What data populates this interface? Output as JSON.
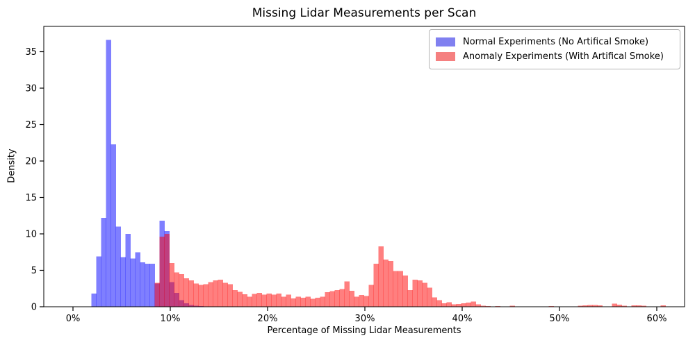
{
  "chart": {
    "title": "Missing Lidar Measurements per Scan",
    "xlabel": "Percentage of Missing Lidar Measurements",
    "ylabel": "Density"
  },
  "legend": {
    "position": "upper right",
    "items": [
      {
        "label": "Normal Experiments (No Artifical Smoke)",
        "swatch_color": "#8080f0",
        "series": "normal"
      },
      {
        "label": "Anomaly Experiments (With Artifical Smoke)",
        "swatch_color": "#f58080",
        "series": "anomaly"
      }
    ]
  },
  "chart_data": {
    "type": "bar",
    "subtype": "overlapping-density-histograms",
    "title": "Missing Lidar Measurements per Scan",
    "xlabel": "Percentage of Missing Lidar Measurements",
    "ylabel": "Density",
    "x_tick_values": [
      0,
      10,
      20,
      30,
      40,
      50,
      60
    ],
    "x_tick_labels": [
      "0%",
      "10%",
      "20%",
      "30%",
      "40%",
      "50%",
      "60%"
    ],
    "y_tick_values": [
      0,
      5,
      10,
      15,
      20,
      25,
      30,
      35
    ],
    "xlim": [
      -3.0,
      62.9
    ],
    "ylim": [
      0,
      38.6
    ],
    "grid": false,
    "bin_width_percent": 0.5,
    "series": [
      {
        "name": "Normal Experiments (No Artifical Smoke)",
        "color": "#0000ff",
        "alpha": 0.5,
        "rendered_color_on_white": "#8080ff",
        "bars": [
          [
            1.9,
            1.8
          ],
          [
            2.4,
            6.9
          ],
          [
            2.9,
            12.2
          ],
          [
            3.4,
            36.6
          ],
          [
            3.9,
            22.3
          ],
          [
            4.4,
            11.0
          ],
          [
            4.9,
            6.8
          ],
          [
            5.4,
            10.0
          ],
          [
            5.9,
            6.6
          ],
          [
            6.4,
            7.5
          ],
          [
            6.9,
            6.1
          ],
          [
            7.4,
            5.9
          ],
          [
            7.9,
            5.9
          ],
          [
            8.4,
            3.2
          ],
          [
            8.9,
            11.8
          ],
          [
            9.4,
            10.4
          ],
          [
            9.9,
            3.4
          ],
          [
            10.4,
            1.9
          ],
          [
            10.9,
            0.9
          ],
          [
            11.4,
            0.5
          ],
          [
            11.9,
            0.25
          ],
          [
            12.4,
            0.15
          ],
          [
            12.9,
            0.1
          ]
        ]
      },
      {
        "name": "Anomaly Experiments (With Artifical Smoke)",
        "color": "#ff0000",
        "alpha": 0.5,
        "rendered_color_on_white": "#ff8080",
        "bars": [
          [
            8.4,
            3.3
          ],
          [
            8.9,
            9.6
          ],
          [
            9.4,
            10.0
          ],
          [
            9.9,
            6.0
          ],
          [
            10.4,
            4.7
          ],
          [
            10.9,
            4.5
          ],
          [
            11.4,
            3.9
          ],
          [
            11.9,
            3.6
          ],
          [
            12.4,
            3.2
          ],
          [
            12.9,
            3.0
          ],
          [
            13.4,
            3.1
          ],
          [
            13.9,
            3.4
          ],
          [
            14.4,
            3.6
          ],
          [
            14.9,
            3.7
          ],
          [
            15.4,
            3.3
          ],
          [
            15.9,
            3.1
          ],
          [
            16.4,
            2.3
          ],
          [
            16.9,
            2.05
          ],
          [
            17.4,
            1.7
          ],
          [
            17.9,
            1.4
          ],
          [
            18.4,
            1.75
          ],
          [
            18.9,
            1.9
          ],
          [
            19.4,
            1.65
          ],
          [
            19.9,
            1.8
          ],
          [
            20.4,
            1.65
          ],
          [
            20.9,
            1.8
          ],
          [
            21.4,
            1.4
          ],
          [
            21.9,
            1.65
          ],
          [
            22.4,
            1.15
          ],
          [
            22.9,
            1.4
          ],
          [
            23.4,
            1.25
          ],
          [
            23.9,
            1.4
          ],
          [
            24.4,
            1.1
          ],
          [
            24.9,
            1.25
          ],
          [
            25.4,
            1.4
          ],
          [
            25.9,
            2.0
          ],
          [
            26.4,
            2.15
          ],
          [
            26.9,
            2.3
          ],
          [
            27.4,
            2.45
          ],
          [
            27.9,
            3.5
          ],
          [
            28.4,
            2.2
          ],
          [
            28.9,
            1.4
          ],
          [
            29.4,
            1.6
          ],
          [
            29.9,
            1.5
          ],
          [
            30.4,
            3.0
          ],
          [
            30.9,
            5.9
          ],
          [
            31.4,
            8.3
          ],
          [
            31.9,
            6.5
          ],
          [
            32.4,
            6.3
          ],
          [
            32.9,
            4.9
          ],
          [
            33.4,
            4.9
          ],
          [
            33.9,
            4.3
          ],
          [
            34.4,
            2.3
          ],
          [
            34.9,
            3.7
          ],
          [
            35.4,
            3.6
          ],
          [
            35.9,
            3.3
          ],
          [
            36.4,
            2.6
          ],
          [
            36.9,
            1.3
          ],
          [
            37.4,
            0.9
          ],
          [
            37.9,
            0.5
          ],
          [
            38.4,
            0.6
          ],
          [
            38.9,
            0.35
          ],
          [
            39.4,
            0.4
          ],
          [
            39.9,
            0.5
          ],
          [
            40.4,
            0.55
          ],
          [
            40.9,
            0.7
          ],
          [
            41.4,
            0.35
          ],
          [
            41.9,
            0.15
          ],
          [
            42.4,
            0.1
          ],
          [
            43.4,
            0.1
          ],
          [
            44.9,
            0.12
          ],
          [
            48.9,
            0.1
          ],
          [
            51.9,
            0.12
          ],
          [
            52.4,
            0.2
          ],
          [
            52.9,
            0.25
          ],
          [
            53.4,
            0.25
          ],
          [
            53.9,
            0.2
          ],
          [
            55.4,
            0.45
          ],
          [
            55.9,
            0.3
          ],
          [
            56.4,
            0.15
          ],
          [
            57.4,
            0.2
          ],
          [
            57.9,
            0.2
          ],
          [
            58.4,
            0.15
          ],
          [
            60.4,
            0.2
          ]
        ]
      }
    ]
  }
}
